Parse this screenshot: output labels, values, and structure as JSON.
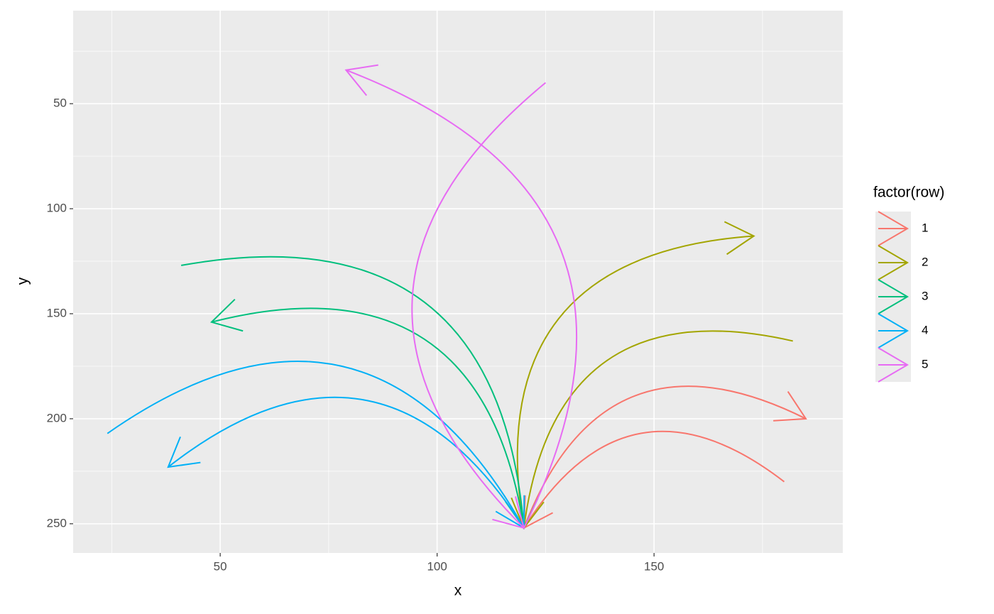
{
  "chart_data": {
    "type": "curve",
    "x_label": "x",
    "y_label": "y",
    "legend_title": "factor(row)",
    "xlim": [
      16.1,
      193.5
    ],
    "ylim": [
      5.7,
      263.9
    ],
    "y_reverse": true,
    "xticks": [
      50,
      100,
      150
    ],
    "yticks": [
      50,
      100,
      150,
      200,
      250
    ],
    "grid": true,
    "legend": "right",
    "series": [
      {
        "name": "1",
        "color": "#F8766D",
        "x": [
          120,
          120
        ],
        "y": [
          252,
          252
        ],
        "xend": [
          185,
          180
        ],
        "yend": [
          200,
          230
        ],
        "arrow": [
          "last",
          "first"
        ]
      },
      {
        "name": "2",
        "color": "#A3A500",
        "x": [
          120,
          120
        ],
        "y": [
          252,
          252
        ],
        "xend": [
          173,
          182
        ],
        "yend": [
          113,
          163
        ],
        "arrow": [
          "last",
          "first"
        ]
      },
      {
        "name": "3",
        "color": "#00BF7D",
        "x": [
          120,
          120
        ],
        "y": [
          252,
          252
        ],
        "xend": [
          48,
          41
        ],
        "yend": [
          154,
          127
        ],
        "arrow": [
          "last",
          "first"
        ]
      },
      {
        "name": "4",
        "color": "#00B0F6",
        "x": [
          120,
          120
        ],
        "y": [
          252,
          252
        ],
        "xend": [
          38,
          24
        ],
        "yend": [
          223,
          207
        ],
        "arrow": [
          "last",
          "first"
        ]
      },
      {
        "name": "5",
        "color": "#E76BF3",
        "x": [
          120,
          120
        ],
        "y": [
          252,
          252
        ],
        "xend": [
          79,
          125
        ],
        "yend": [
          34,
          40
        ],
        "arrow": [
          "last",
          "first"
        ]
      }
    ]
  }
}
